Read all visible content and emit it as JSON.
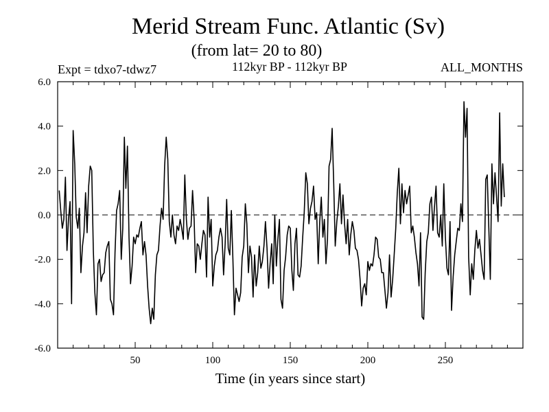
{
  "chart_data": {
    "type": "line",
    "title": "Merid Stream Func. Atlantic (Sv)",
    "subtitle": "(from lat= 20 to 80)",
    "left_note": "Expt = tdxo7-tdwz7",
    "center_note": "112kyr BP - 112kyr BP",
    "right_note": "ALL_MONTHS",
    "xlabel": "Time (in years since start)",
    "ylabel": "",
    "xlim": [
      0,
      300
    ],
    "ylim": [
      -6,
      6
    ],
    "x_ticks": [
      50,
      100,
      150,
      200,
      250
    ],
    "y_ticks": [
      -6.0,
      -4.0,
      -2.0,
      0.0,
      2.0,
      4.0,
      6.0
    ],
    "y_tick_labels": [
      "-6.0",
      "-4.0",
      "-2.0",
      "0.0",
      "2.0",
      "4.0",
      "6.0"
    ],
    "zero_line": "dashed",
    "series": [
      {
        "x_start": 1,
        "x_step": 1,
        "values": [
          1.1,
          0.2,
          -0.6,
          -0.2,
          1.7,
          -1.6,
          -0.2,
          0.6,
          -4.0,
          3.8,
          2.3,
          -0.1,
          -0.6,
          0.3,
          -2.6,
          -1.4,
          -0.8,
          1.0,
          -0.8,
          1.3,
          2.2,
          2.0,
          -1.6,
          -3.5,
          -4.5,
          -2.2,
          -2.0,
          -3.0,
          -2.7,
          -2.6,
          -1.7,
          -1.4,
          -1.2,
          -3.8,
          -4.0,
          -4.5,
          -1.7,
          0.2,
          0.5,
          1.1,
          -2.0,
          -0.6,
          3.5,
          1.2,
          3.1,
          -1.0,
          -3.1,
          -2.3,
          -1.0,
          -1.3,
          -0.9,
          -1.0,
          -0.6,
          -0.3,
          -1.8,
          -1.2,
          -1.8,
          -3.2,
          -4.2,
          -4.9,
          -4.2,
          -4.7,
          -2.7,
          -1.8,
          -1.6,
          -0.5,
          0.3,
          -0.2,
          2.2,
          3.5,
          2.5,
          -0.3,
          -1.0,
          0.0,
          -0.9,
          -1.3,
          -0.5,
          -0.7,
          -0.2,
          -0.6,
          -1.1,
          1.8,
          -0.2,
          -1.1,
          -0.6,
          -0.5,
          1.1,
          -0.2,
          -2.6,
          -1.3,
          -1.4,
          -2.0,
          -1.3,
          -0.7,
          -0.9,
          -2.8,
          0.8,
          -1.0,
          -0.2,
          -3.2,
          -2.3,
          -1.8,
          -1.6,
          -1.0,
          -0.6,
          -1.0,
          -2.7,
          -1.3,
          0.7,
          -1.5,
          -1.8,
          0.2,
          -2.0,
          -4.5,
          -3.3,
          -3.6,
          -3.9,
          -3.5,
          -1.9,
          -1.4,
          0.5,
          -0.4,
          -2.6,
          -1.4,
          -1.9,
          -3.7,
          -1.8,
          -3.2,
          -2.6,
          -1.4,
          -2.4,
          -2.1,
          -1.4,
          -0.3,
          -1.5,
          -3.3,
          -2.2,
          -1.3,
          -3.1,
          0.0,
          -2.3,
          -1.1,
          -0.2,
          -3.8,
          -4.2,
          -2.5,
          -1.9,
          -0.9,
          -0.5,
          -0.6,
          -2.5,
          -3.4,
          -1.3,
          -0.6,
          -2.7,
          -2.8,
          -2.3,
          -1.0,
          0.1,
          1.9,
          1.4,
          -0.4,
          0.3,
          0.6,
          1.3,
          -0.2,
          0.1,
          -2.2,
          -0.3,
          0.8,
          -1.0,
          -0.2,
          -2.2,
          -1.1,
          2.2,
          2.5,
          3.9,
          1.4,
          -1.4,
          -0.3,
          0.4,
          1.4,
          -0.4,
          0.9,
          -0.4,
          -1.3,
          -0.2,
          -1.8,
          -0.9,
          -0.3,
          -0.7,
          -1.5,
          -1.6,
          -2.0,
          -2.9,
          -4.1,
          -3.3,
          -3.1,
          -3.6,
          -2.1,
          -2.5,
          -2.2,
          -2.3,
          -1.8,
          -1.0,
          -1.1,
          -1.9,
          -2.0,
          -2.6,
          -2.6,
          -3.4,
          -4.2,
          -3.5,
          -1.8,
          -3.7,
          -2.9,
          -1.8,
          -0.6,
          1.0,
          2.1,
          -0.4,
          1.4,
          0.1,
          1.1,
          0.5,
          0.9,
          1.3,
          -0.8,
          -0.5,
          -1.0,
          -1.7,
          -2.2,
          -3.2,
          -0.8,
          -4.6,
          -4.7,
          -2.6,
          -1.2,
          -0.8,
          0.5,
          0.8,
          -0.7,
          0.4,
          1.3,
          -0.8,
          -1.0,
          0.0,
          -1.4,
          1.4,
          -1.0,
          -2.4,
          -2.7,
          -0.3,
          -4.3,
          -2.8,
          -1.8,
          -1.2,
          -0.6,
          -0.7,
          0.5,
          -0.3,
          5.1,
          3.5,
          4.8,
          -1.9,
          -3.6,
          -2.2,
          -2.9,
          -1.6,
          -0.7,
          -1.5,
          -1.1,
          -1.8,
          -2.5,
          -2.9,
          1.6,
          1.8,
          -0.6,
          -2.9,
          2.3,
          0.5,
          1.9,
          0.8,
          -0.3,
          4.6,
          0.4,
          2.3,
          0.8
        ]
      }
    ]
  }
}
